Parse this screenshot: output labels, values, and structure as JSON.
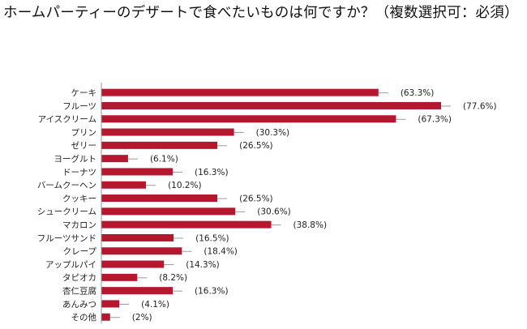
{
  "title": "ホームパーティーのデザートで食べたいものは何ですか？（複数選択可：必須）",
  "chart_data": {
    "type": "bar",
    "orientation": "horizontal",
    "title": "ホームパーティーのデザートで食べたいものは何ですか？（複数選択可：必須）",
    "categories": [
      "ケーキ",
      "フルーツ",
      "アイスクリーム",
      "プリン",
      "ゼリー",
      "ヨーグルト",
      "ドーナツ",
      "バームクーヘン",
      "クッキー",
      "シュークリーム",
      "マカロン",
      "フルーツサンド",
      "クレープ",
      "アップルパイ",
      "タピオカ",
      "杏仁豆腐",
      "あんみつ",
      "その他"
    ],
    "values": [
      63.3,
      77.6,
      67.3,
      30.3,
      26.5,
      6.1,
      16.3,
      10.2,
      26.5,
      30.6,
      38.8,
      16.5,
      18.4,
      14.3,
      8.2,
      16.3,
      4.1,
      2
    ],
    "value_labels": [
      "(63.3%)",
      "(77.6%)",
      "(67.3%)",
      "(30.3%)",
      "(26.5%)",
      "(6.1%)",
      "(16.3%)",
      "(10.2%)",
      "(26.5%)",
      "(30.6%)",
      "(38.8%)",
      "(16.5%)",
      "(18.4%)",
      "(14.3%)",
      "(8.2%)",
      "(16.3%)",
      "(4.1%)",
      "(2%)"
    ],
    "xlim": [
      0,
      100
    ],
    "grid": false,
    "legend": "none",
    "colors": {
      "bar": "#b5172f",
      "axis": "#999999",
      "whisker": "#9a9a9a"
    }
  }
}
